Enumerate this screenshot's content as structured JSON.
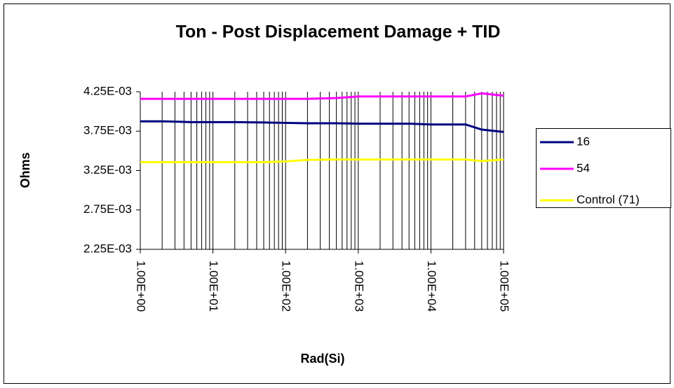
{
  "chart_data": {
    "type": "line",
    "title": "Ton - Post Displacement Damage + TID",
    "x_label": "Rad(Si)",
    "y_label": "Ohms",
    "x_scale": "log",
    "x": [
      1,
      2,
      5,
      10,
      20,
      50,
      100,
      200,
      500,
      1000,
      2000,
      5000,
      10000,
      20000,
      30000,
      50000,
      100000
    ],
    "series": [
      {
        "name": "16",
        "color": "#000080",
        "values": [
          0.003875,
          0.003875,
          0.003865,
          0.003865,
          0.003865,
          0.00386,
          0.003855,
          0.00385,
          0.00385,
          0.003845,
          0.003845,
          0.003845,
          0.003835,
          0.003835,
          0.003835,
          0.00377,
          0.00374
        ]
      },
      {
        "name": "54",
        "color": "#ff00ff",
        "values": [
          0.00416,
          0.00416,
          0.00416,
          0.00416,
          0.00416,
          0.00416,
          0.00416,
          0.00416,
          0.00417,
          0.00419,
          0.00419,
          0.00419,
          0.00419,
          0.00419,
          0.00419,
          0.00423,
          0.0042
        ]
      },
      {
        "name": "Control (71)",
        "color": "#ffff00",
        "values": [
          0.003357,
          0.003357,
          0.003357,
          0.003357,
          0.003357,
          0.003357,
          0.003365,
          0.003385,
          0.00339,
          0.00339,
          0.00339,
          0.00339,
          0.00339,
          0.00339,
          0.00339,
          0.00337,
          0.00339
        ]
      }
    ],
    "xlim": [
      1,
      100000
    ],
    "xticks": [
      {
        "value": 1,
        "label": "1.00E+00"
      },
      {
        "value": 10,
        "label": "1.00E+01"
      },
      {
        "value": 100,
        "label": "1.00E+02"
      },
      {
        "value": 1000,
        "label": "1.00E+03"
      },
      {
        "value": 10000,
        "label": "1.00E+04"
      },
      {
        "value": 100000,
        "label": "1.00E+05"
      }
    ],
    "ylim": [
      0.00225,
      0.00425
    ],
    "yticks": [
      {
        "value": 0.00225,
        "label": "2.25E-03"
      },
      {
        "value": 0.00275,
        "label": "2.75E-03"
      },
      {
        "value": 0.00325,
        "label": "3.25E-03"
      },
      {
        "value": 0.00375,
        "label": "3.75E-03"
      },
      {
        "value": 0.00425,
        "label": "4.25E-03"
      }
    ],
    "x_grid": true,
    "legend": "right"
  }
}
